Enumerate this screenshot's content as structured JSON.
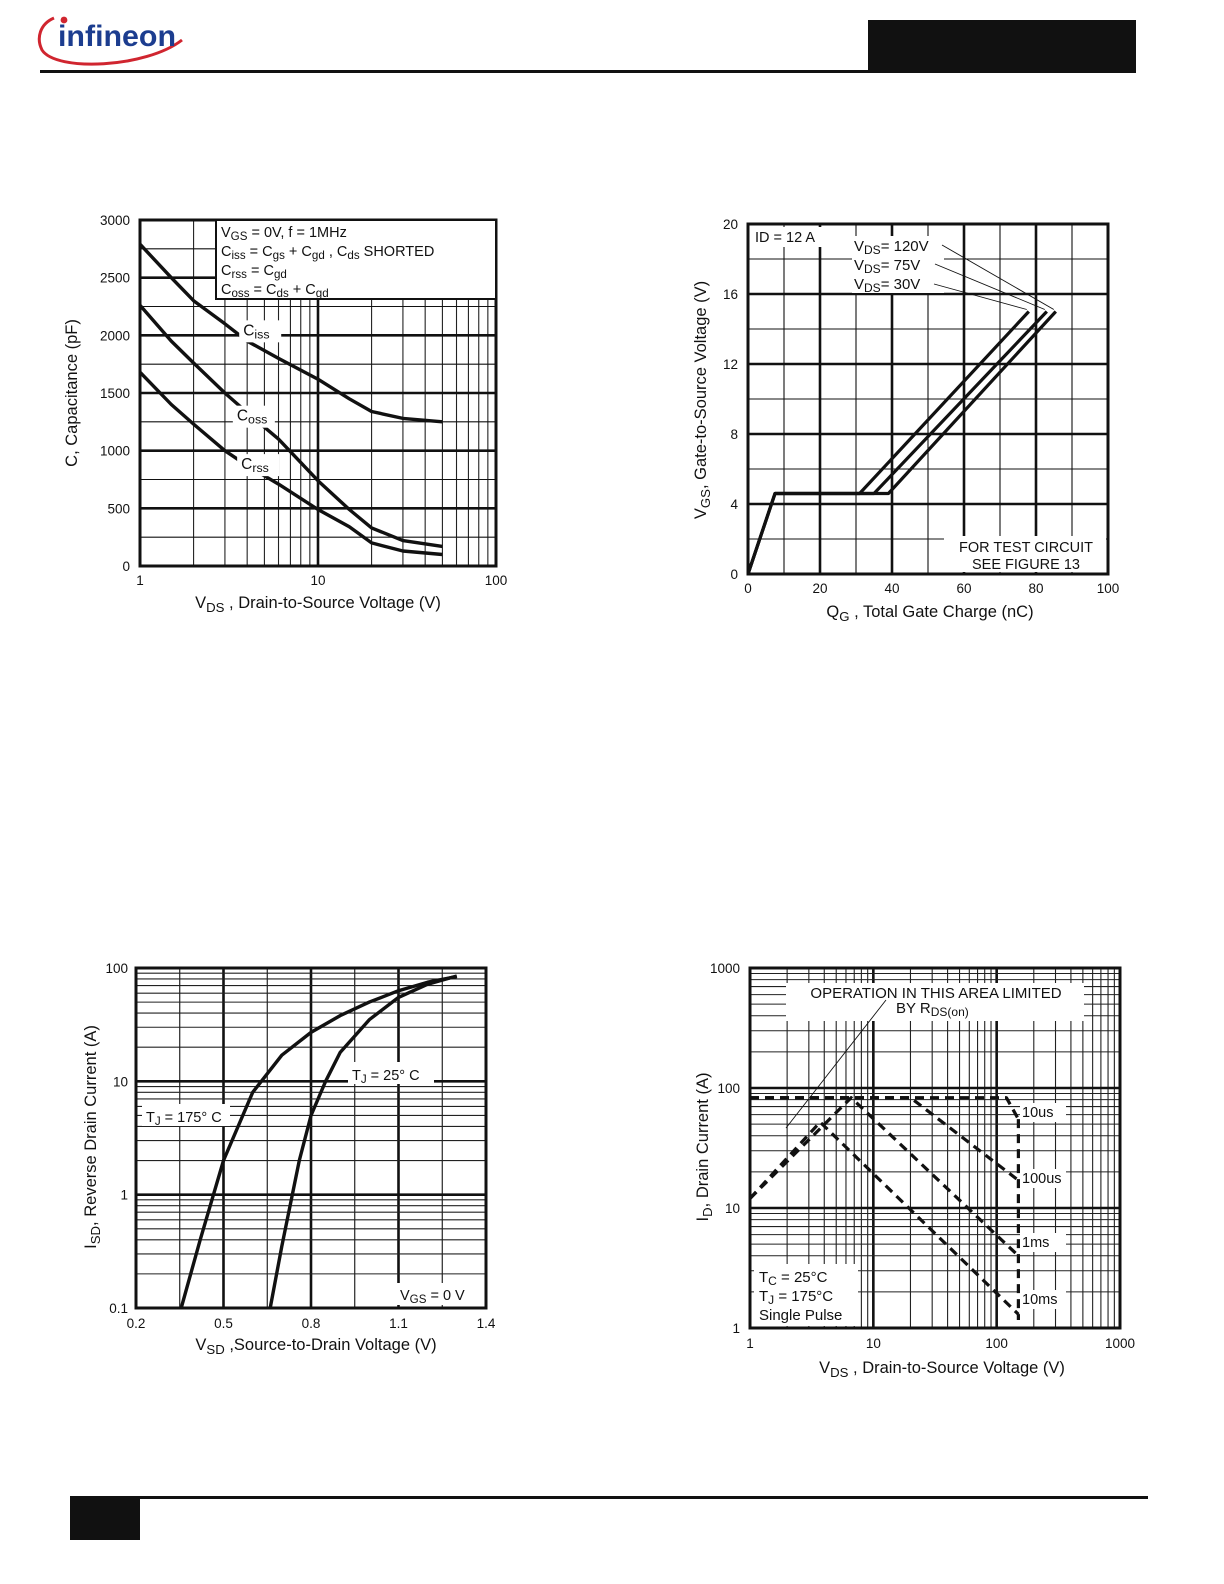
{
  "header": {
    "brand": "infineon",
    "brand_color": "#d0252f",
    "text_color": "#1c3d8f"
  },
  "chart_data": [
    {
      "id": "capacitance",
      "type": "line",
      "xscale": "log",
      "xlim": [
        1,
        100
      ],
      "ylim": [
        0,
        3000
      ],
      "xticks": [
        1,
        10,
        100
      ],
      "yticks": [
        0,
        500,
        1000,
        1500,
        2000,
        2500,
        3000
      ],
      "xlabel": {
        "main": "V",
        "sub": "DS",
        "rest": " , Drain-to-Source Voltage (V)"
      },
      "ylabel": "C, Capacitance (pF)",
      "legend_box": [
        {
          "parts": [
            [
              "V",
              ""
            ],
            [
              "GS",
              "sub"
            ],
            [
              " = 0V,       f = 1MHz",
              ""
            ]
          ]
        },
        {
          "parts": [
            [
              "C",
              ""
            ],
            [
              "iss",
              "sub"
            ],
            [
              " = C",
              ""
            ],
            [
              "gs",
              "sub"
            ],
            [
              " + C",
              ""
            ],
            [
              "gd",
              "sub"
            ],
            [
              " ,  C",
              ""
            ],
            [
              "ds",
              "sub"
            ],
            [
              "   SHORTED",
              ""
            ]
          ]
        },
        {
          "parts": [
            [
              "C",
              ""
            ],
            [
              "rss",
              "sub"
            ],
            [
              " = C",
              ""
            ],
            [
              "gd",
              "sub"
            ]
          ]
        },
        {
          "parts": [
            [
              "C",
              ""
            ],
            [
              "oss",
              "sub"
            ],
            [
              " = C",
              ""
            ],
            [
              "ds",
              "sub"
            ],
            [
              " + C",
              ""
            ],
            [
              "gd",
              "sub"
            ]
          ]
        }
      ],
      "series": [
        {
          "label": {
            "main": "C",
            "sub": "iss",
            "x": 3.8,
            "y": 2000
          },
          "points": [
            [
              1,
              2790
            ],
            [
              1.5,
              2500
            ],
            [
              2,
              2300
            ],
            [
              3,
              2100
            ],
            [
              4,
              1950
            ],
            [
              6,
              1800
            ],
            [
              10,
              1620
            ],
            [
              15,
              1450
            ],
            [
              20,
              1340
            ],
            [
              30,
              1280
            ],
            [
              50,
              1250
            ]
          ]
        },
        {
          "label": {
            "main": "C",
            "sub": "oss",
            "x": 3.5,
            "y": 1260
          },
          "points": [
            [
              1,
              2260
            ],
            [
              1.5,
              1950
            ],
            [
              2,
              1760
            ],
            [
              3,
              1500
            ],
            [
              4,
              1330
            ],
            [
              6,
              1100
            ],
            [
              10,
              740
            ],
            [
              15,
              490
            ],
            [
              20,
              330
            ],
            [
              30,
              220
            ],
            [
              50,
              170
            ]
          ]
        },
        {
          "label": {
            "main": "C",
            "sub": "rss",
            "x": 3.7,
            "y": 840
          },
          "points": [
            [
              1,
              1680
            ],
            [
              1.5,
              1400
            ],
            [
              2,
              1230
            ],
            [
              3,
              1000
            ],
            [
              4,
              870
            ],
            [
              6,
              710
            ],
            [
              10,
              490
            ],
            [
              15,
              340
            ],
            [
              20,
              200
            ],
            [
              30,
              130
            ],
            [
              50,
              100
            ]
          ]
        }
      ]
    },
    {
      "id": "gate-charge",
      "type": "line",
      "xlim": [
        0,
        100
      ],
      "ylim": [
        0,
        20
      ],
      "xticks": [
        0,
        20,
        40,
        60,
        80,
        100
      ],
      "yticks": [
        0,
        4,
        8,
        12,
        16,
        20
      ],
      "xlabel": {
        "main": "Q",
        "sub": "G",
        "rest": " , Total Gate Charge (nC)"
      },
      "ylabel": {
        "main": "V",
        "sub": "GS",
        "rest": ", Gate-to-Source Voltage (V)"
      },
      "id_note": "ID = 12    A",
      "vds_labels": [
        {
          "prefix": "V",
          "sub": "DS",
          "text": "= 120V"
        },
        {
          "prefix": "V",
          "sub": "DS",
          "text": "= 75V"
        },
        {
          "prefix": "V",
          "sub": "DS",
          "text": "= 30V"
        }
      ],
      "test_note": [
        "FOR TEST CIRCUIT",
        "SEE FIGURE 13"
      ],
      "series": [
        {
          "points": [
            [
              0,
              0
            ],
            [
              7.5,
              4.6
            ],
            [
              31,
              4.6
            ],
            [
              78,
              15
            ]
          ]
        },
        {
          "points": [
            [
              0,
              0
            ],
            [
              7.5,
              4.6
            ],
            [
              35,
              4.6
            ],
            [
              83,
              15
            ]
          ]
        },
        {
          "points": [
            [
              0,
              0
            ],
            [
              7.5,
              4.6
            ],
            [
              39,
              4.6
            ],
            [
              85.5,
              15
            ]
          ]
        }
      ]
    },
    {
      "id": "body-diode",
      "type": "line",
      "xlim": [
        0.2,
        1.4
      ],
      "yscale": "log",
      "ylim": [
        0.1,
        100
      ],
      "xticks": [
        0.2,
        0.5,
        0.8,
        1.1,
        1.4
      ],
      "yticks": [
        0.1,
        1,
        10,
        100
      ],
      "xlabel": {
        "main": "V",
        "sub": "SD",
        "rest": " ,Source-to-Drain Voltage (V)"
      },
      "ylabel": {
        "main": "I",
        "sub": "SD",
        "rest": ", Reverse Drain Current (A)"
      },
      "vgs_note": {
        "main": "V",
        "sub": "GS",
        "rest": " = 0 V"
      },
      "series": [
        {
          "label": {
            "main": "T",
            "sub": "J",
            "rest": " = 175° C"
          },
          "points": [
            [
              0.355,
              0.1
            ],
            [
              0.42,
              0.4
            ],
            [
              0.5,
              2
            ],
            [
              0.6,
              8
            ],
            [
              0.7,
              17
            ],
            [
              0.8,
              27
            ],
            [
              0.9,
              38
            ],
            [
              1.0,
              50
            ],
            [
              1.1,
              63
            ],
            [
              1.2,
              75
            ],
            [
              1.3,
              84
            ]
          ]
        },
        {
          "label": {
            "main": "T",
            "sub": "J",
            "rest": " = 25° C"
          },
          "points": [
            [
              0.66,
              0.1
            ],
            [
              0.7,
              0.35
            ],
            [
              0.76,
              2
            ],
            [
              0.8,
              5
            ],
            [
              0.85,
              10
            ],
            [
              0.9,
              18
            ],
            [
              1.0,
              35
            ],
            [
              1.1,
              55
            ],
            [
              1.2,
              72
            ],
            [
              1.3,
              85
            ]
          ]
        }
      ]
    },
    {
      "id": "safe-operating-area",
      "type": "line",
      "xscale": "log",
      "yscale": "log",
      "xlim": [
        1,
        1000
      ],
      "ylim": [
        1,
        1000
      ],
      "xticks": [
        1,
        10,
        100,
        1000
      ],
      "yticks": [
        1,
        10,
        100,
        1000
      ],
      "xlabel": {
        "main": "V",
        "sub": "DS",
        "rest": " , Drain-to-Source Voltage (V)"
      },
      "ylabel": {
        "main": "I",
        "sub": "D",
        "rest": ", Drain Current (A)"
      },
      "area_note": [
        "OPERATION IN THIS AREA LIMITED",
        "BY R",
        "DS(on)"
      ],
      "conditions": [
        {
          "main": "T",
          "sub": "C",
          "rest": " = 25°C"
        },
        {
          "main": "T",
          "sub": "J",
          "rest": " = 175°C"
        },
        {
          "main": "Single Pulse",
          "sub": "",
          "rest": ""
        }
      ],
      "series": [
        {
          "label": "10us",
          "points": [
            [
              1,
              83
            ],
            [
              120,
              83
            ],
            [
              150,
              55
            ]
          ]
        },
        {
          "label": "100us",
          "points": [
            [
              1,
              83
            ],
            [
              20,
              83
            ],
            [
              150,
              17
            ]
          ]
        },
        {
          "label": "1ms",
          "points": [
            [
              1,
              12
            ],
            [
              6.6,
              83
            ],
            [
              150,
              4
            ]
          ]
        },
        {
          "label": "10ms",
          "points": [
            [
              1,
              12
            ],
            [
              3.7,
              52
            ],
            [
              150,
              1.3
            ]
          ]
        }
      ],
      "vds_limit": 150
    }
  ]
}
